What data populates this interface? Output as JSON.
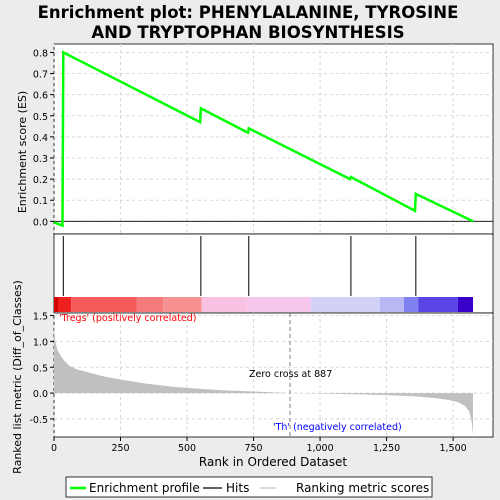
{
  "title_line1": "Enrichment plot: PHENYLALANINE, TYROSINE",
  "title_line2": "AND TRYPTOPHAN BIOSYNTHESIS",
  "colors": {
    "enrichment_line": "#00ff00",
    "hits": "#000000",
    "ranking_fill": "#c0c0c0",
    "grid": "#d8d8d8",
    "pos_label": "#ff0000",
    "neg_label": "#0000ff",
    "zero_cross_line": "#808080"
  },
  "chart_data": [
    {
      "type": "line",
      "name": "enrichment_profile",
      "ylabel": "Enrichment score (ES)",
      "xlim": [
        0,
        1650
      ],
      "ylim": [
        -0.06,
        0.84
      ],
      "y_ticks": [
        "0.0",
        "0.1",
        "0.2",
        "0.3",
        "0.4",
        "0.5",
        "0.6",
        "0.7",
        "0.8"
      ],
      "y_tick_values": [
        0.0,
        0.1,
        0.2,
        0.3,
        0.4,
        0.5,
        0.6,
        0.7,
        0.8
      ],
      "grid": true,
      "points": [
        [
          0,
          -0.005
        ],
        [
          32,
          -0.02
        ],
        [
          35,
          0.8
        ],
        [
          549,
          0.47
        ],
        [
          552,
          0.535
        ],
        [
          729,
          0.42
        ],
        [
          732,
          0.44
        ],
        [
          1113,
          0.2
        ],
        [
          1116,
          0.21
        ],
        [
          1357,
          0.05
        ],
        [
          1360,
          0.13
        ],
        [
          1575,
          0.0
        ]
      ]
    },
    {
      "type": "hits",
      "name": "hits",
      "x": [
        35,
        552,
        732,
        1116,
        1360
      ],
      "heatmap_segments": [
        {
          "x0": 0,
          "x1": 15,
          "color": "#d40000"
        },
        {
          "x0": 15,
          "x1": 65,
          "color": "#ee2020"
        },
        {
          "x0": 65,
          "x1": 310,
          "color": "#f55a5a"
        },
        {
          "x0": 310,
          "x1": 410,
          "color": "#f57a7a"
        },
        {
          "x0": 410,
          "x1": 555,
          "color": "#f79090"
        },
        {
          "x0": 555,
          "x1": 725,
          "color": "#f9c2e2"
        },
        {
          "x0": 725,
          "x1": 965,
          "color": "#f6c6ec"
        },
        {
          "x0": 965,
          "x1": 1225,
          "color": "#d2d2f8"
        },
        {
          "x0": 1225,
          "x1": 1315,
          "color": "#b8b8f5"
        },
        {
          "x0": 1315,
          "x1": 1370,
          "color": "#8080f0"
        },
        {
          "x0": 1370,
          "x1": 1518,
          "color": "#5a46e6"
        },
        {
          "x0": 1518,
          "x1": 1575,
          "color": "#3800c8"
        }
      ]
    },
    {
      "type": "area",
      "name": "ranked_list_metric",
      "ylabel": "Ranked list metric (Diff_of_Classes)",
      "xlabel": "Rank in Ordered Dataset",
      "xlim": [
        0,
        1650
      ],
      "ylim": [
        -0.85,
        1.55
      ],
      "x_ticks": [
        "0",
        "250",
        "500",
        "750",
        "1,000",
        "1,250",
        "1,500"
      ],
      "x_tick_values": [
        0,
        250,
        500,
        750,
        1000,
        1250,
        1500
      ],
      "y_ticks": [
        "-0.5",
        "0.0",
        "0.5",
        "1.0",
        "1.5"
      ],
      "y_tick_values": [
        -0.5,
        0.0,
        0.5,
        1.0,
        1.5
      ],
      "grid": true,
      "points": [
        [
          0,
          1.3
        ],
        [
          5,
          1.0
        ],
        [
          12,
          0.85
        ],
        [
          25,
          0.72
        ],
        [
          40,
          0.62
        ],
        [
          60,
          0.52
        ],
        [
          90,
          0.45
        ],
        [
          130,
          0.4
        ],
        [
          180,
          0.33
        ],
        [
          250,
          0.26
        ],
        [
          350,
          0.18
        ],
        [
          450,
          0.12
        ],
        [
          550,
          0.08
        ],
        [
          650,
          0.05
        ],
        [
          750,
          0.03
        ],
        [
          850,
          0.01
        ],
        [
          887,
          0.0
        ],
        [
          950,
          -0.005
        ],
        [
          1050,
          -0.015
        ],
        [
          1150,
          -0.025
        ],
        [
          1250,
          -0.04
        ],
        [
          1350,
          -0.06
        ],
        [
          1420,
          -0.09
        ],
        [
          1480,
          -0.13
        ],
        [
          1520,
          -0.18
        ],
        [
          1545,
          -0.25
        ],
        [
          1560,
          -0.35
        ],
        [
          1570,
          -0.55
        ],
        [
          1575,
          -0.82
        ]
      ],
      "zero_cross": 887
    }
  ],
  "annotations": {
    "pos_label": "'Tregs' (positively correlated)",
    "neg_label": "'Th' (negatively correlated)",
    "zero_cross": "Zero cross at 887"
  },
  "legend": {
    "placement": "bottom",
    "items": [
      {
        "label": "Enrichment profile",
        "swatch": "line",
        "color": "#00ff00"
      },
      {
        "label": "Hits",
        "swatch": "line",
        "color": "#000000"
      },
      {
        "label": "Ranking metric scores",
        "swatch": "line",
        "color": "#c0c0c0"
      }
    ]
  }
}
